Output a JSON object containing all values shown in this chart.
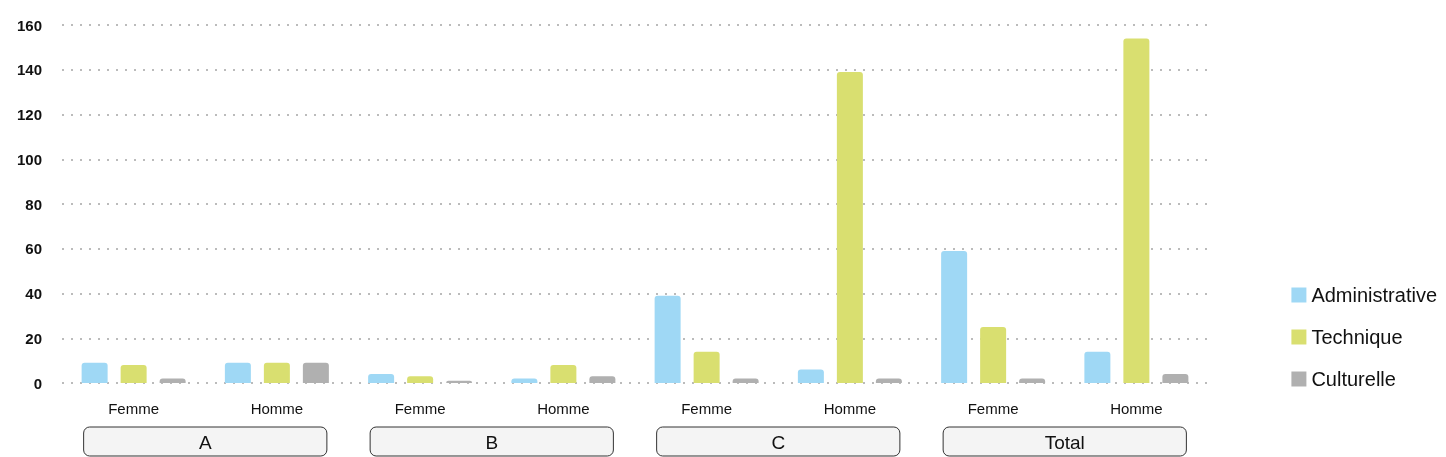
{
  "chart_data": {
    "type": "bar",
    "categories": [
      "Femme",
      "Homme",
      "Femme",
      "Homme",
      "Femme",
      "Homme",
      "Femme",
      "Homme"
    ],
    "series": [
      {
        "name": "Administrative",
        "color": "#9fd8f5",
        "values": [
          9,
          9,
          4,
          2,
          39,
          6,
          59,
          14
        ]
      },
      {
        "name": "Technique",
        "color": "#d9df70",
        "values": [
          8,
          9,
          3,
          8,
          14,
          139,
          25,
          154
        ]
      },
      {
        "name": "Culturelle",
        "color": "#b0b0b0",
        "values": [
          2,
          9,
          1,
          3,
          2,
          2,
          2,
          4
        ]
      }
    ],
    "annotations": [
      "A",
      "B",
      "C",
      "Total"
    ],
    "ylim": [
      0,
      160
    ],
    "yticks": [
      0,
      20,
      40,
      60,
      80,
      100,
      120,
      140,
      160
    ],
    "grid": "y",
    "legend": "right"
  }
}
